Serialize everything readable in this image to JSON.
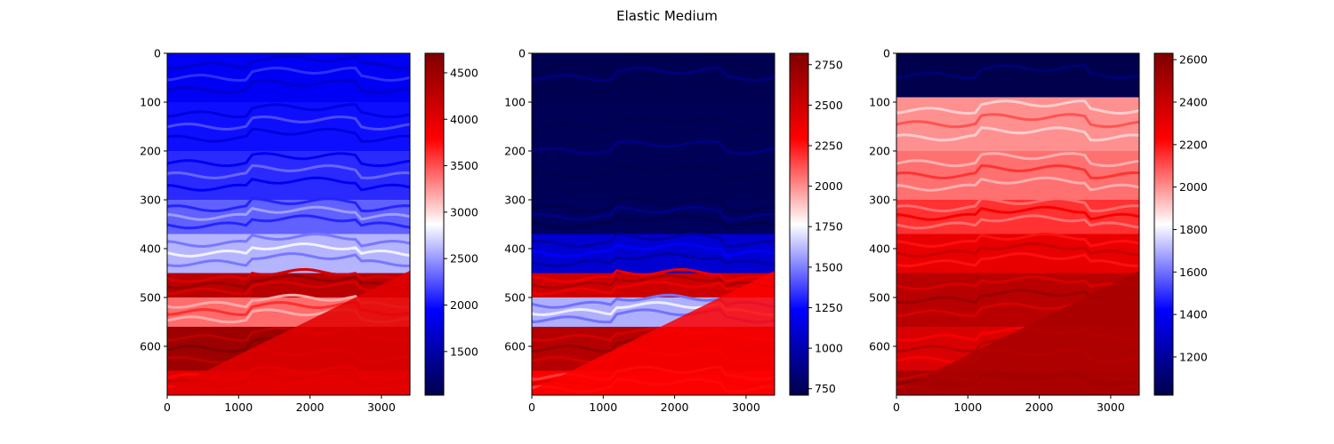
{
  "figure": {
    "title": "Elastic Medium"
  },
  "colormap": [
    "#00004c",
    "#0000ff",
    "#ffffff",
    "#ff0000",
    "#7f0000"
  ],
  "chart_data": [
    {
      "type": "heatmap",
      "title": "",
      "xlabel": "",
      "ylabel": "",
      "xlim": [
        0,
        3400
      ],
      "ylim": [
        700,
        0
      ],
      "x_ticks": [
        0,
        1000,
        2000,
        3000
      ],
      "y_ticks": [
        0,
        100,
        200,
        300,
        400,
        500,
        600
      ],
      "colorbar": {
        "min": 1030,
        "max": 4710,
        "ticks": [
          1500,
          2000,
          2500,
          3000,
          3500,
          4000,
          4500
        ]
      },
      "layers": [
        {
          "depth": 0,
          "value": 1900
        },
        {
          "depth": 100,
          "value": 2000
        },
        {
          "depth": 200,
          "value": 2100
        },
        {
          "depth": 300,
          "value": 2300
        },
        {
          "depth": 370,
          "value": 2600
        },
        {
          "depth": 450,
          "value": 4300
        },
        {
          "depth": 500,
          "value": 3400
        },
        {
          "depth": 560,
          "value": 4500
        },
        {
          "depth": 650,
          "value": 4000
        }
      ]
    },
    {
      "type": "heatmap",
      "title": "",
      "xlabel": "",
      "ylabel": "",
      "xlim": [
        0,
        3400
      ],
      "ylim": [
        700,
        0
      ],
      "x_ticks": [
        0,
        1000,
        2000,
        3000
      ],
      "y_ticks": [
        0,
        100,
        200,
        300,
        400,
        500,
        600
      ],
      "colorbar": {
        "min": 710,
        "max": 2820,
        "ticks": [
          750,
          1000,
          1250,
          1500,
          1750,
          2000,
          2250,
          2500,
          2750
        ]
      },
      "layers": [
        {
          "depth": 0,
          "value": 730
        },
        {
          "depth": 100,
          "value": 740
        },
        {
          "depth": 300,
          "value": 760
        },
        {
          "depth": 370,
          "value": 1100
        },
        {
          "depth": 450,
          "value": 2500
        },
        {
          "depth": 500,
          "value": 1600
        },
        {
          "depth": 560,
          "value": 2600
        },
        {
          "depth": 650,
          "value": 2300
        }
      ]
    },
    {
      "type": "heatmap",
      "title": "",
      "xlabel": "",
      "ylabel": "",
      "xlim": [
        0,
        3400
      ],
      "ylim": [
        700,
        0
      ],
      "x_ticks": [
        0,
        1000,
        2000,
        3000
      ],
      "y_ticks": [
        0,
        100,
        200,
        300,
        400,
        500,
        600
      ],
      "colorbar": {
        "min": 1020,
        "max": 2630,
        "ticks": [
          1200,
          1400,
          1600,
          1800,
          2000,
          2200,
          2400,
          2600
        ]
      },
      "layers": [
        {
          "depth": 0,
          "value": 1020
        },
        {
          "depth": 90,
          "value": 2000
        },
        {
          "depth": 200,
          "value": 2050
        },
        {
          "depth": 300,
          "value": 2150
        },
        {
          "depth": 370,
          "value": 2300
        },
        {
          "depth": 450,
          "value": 2450
        },
        {
          "depth": 560,
          "value": 2350
        },
        {
          "depth": 650,
          "value": 2500
        }
      ]
    }
  ]
}
